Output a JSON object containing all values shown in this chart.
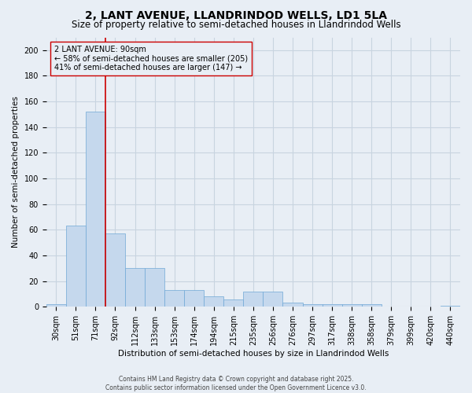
{
  "title": "2, LANT AVENUE, LLANDRINDOD WELLS, LD1 5LA",
  "subtitle": "Size of property relative to semi-detached houses in Llandrindod Wells",
  "xlabel": "Distribution of semi-detached houses by size in Llandrindod Wells",
  "ylabel": "Number of semi-detached properties",
  "categories": [
    "30sqm",
    "51sqm",
    "71sqm",
    "92sqm",
    "112sqm",
    "133sqm",
    "153sqm",
    "174sqm",
    "194sqm",
    "215sqm",
    "235sqm",
    "256sqm",
    "276sqm",
    "297sqm",
    "317sqm",
    "338sqm",
    "358sqm",
    "379sqm",
    "399sqm",
    "420sqm",
    "440sqm"
  ],
  "values": [
    2,
    63,
    152,
    57,
    30,
    30,
    13,
    13,
    8,
    6,
    12,
    12,
    3,
    2,
    2,
    2,
    2,
    0,
    0,
    0,
    1
  ],
  "bar_color": "#c5d8ed",
  "bar_edge_color": "#6fa8d6",
  "vline_x_index": 2,
  "vline_color": "#cc0000",
  "annotation_text": "2 LANT AVENUE: 90sqm\n← 58% of semi-detached houses are smaller (205)\n41% of semi-detached houses are larger (147) →",
  "annotation_box_color": "#cc0000",
  "ylim": [
    0,
    210
  ],
  "yticks": [
    0,
    20,
    40,
    60,
    80,
    100,
    120,
    140,
    160,
    180,
    200
  ],
  "footer": "Contains HM Land Registry data © Crown copyright and database right 2025.\nContains public sector information licensed under the Open Government Licence v3.0.",
  "background_color": "#e8eef5",
  "plot_bg_color": "#e8eef5",
  "grid_color": "#c8d4e0",
  "title_fontsize": 10,
  "subtitle_fontsize": 8.5,
  "axis_label_fontsize": 7.5,
  "tick_fontsize": 7,
  "annotation_fontsize": 7,
  "footer_fontsize": 5.5
}
